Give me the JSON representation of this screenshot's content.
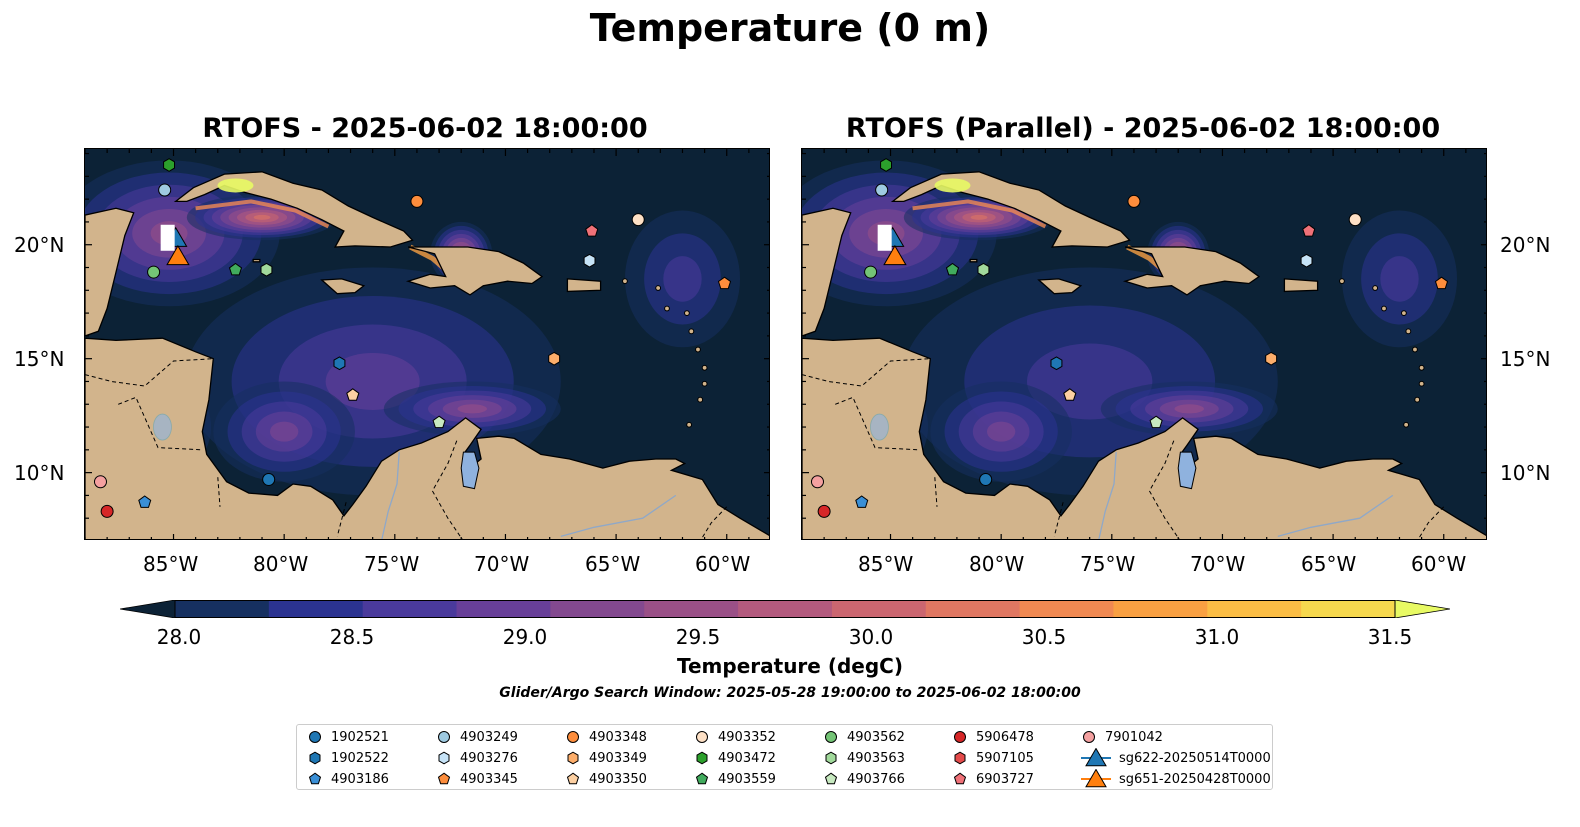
{
  "figure": {
    "suptitle": "Temperature (0 m)",
    "panels": [
      {
        "title": "RTOFS - 2025-06-02 18:00:00"
      },
      {
        "title": "RTOFS (Parallel) - 2025-06-02 18:00:00"
      }
    ],
    "lon_ticks": [
      "85°W",
      "80°W",
      "75°W",
      "70°W",
      "65°W",
      "60°W"
    ],
    "lat_ticks": [
      "20°N",
      "15°N",
      "10°N"
    ],
    "colorbar": {
      "label": "Temperature (degC)",
      "ticks": [
        "28.0",
        "28.5",
        "29.0",
        "29.5",
        "30.0",
        "30.5",
        "31.0",
        "31.5"
      ],
      "range": [
        27.75,
        31.75
      ],
      "colors": [
        "#0c2236",
        "#163060",
        "#2b3391",
        "#4a3a9c",
        "#683f99",
        "#83498f",
        "#9a5087",
        "#b35a7e",
        "#cb6670",
        "#e07762",
        "#f08952",
        "#f9a042",
        "#fbbd45",
        "#f6d84e",
        "#e8fa64"
      ]
    },
    "search_window": "Glider/Argo Search Window: 2025-05-28 19:00:00 to 2025-06-02 18:00:00",
    "legend": [
      {
        "label": "1902521",
        "color": "#1f77b4",
        "marker": "circle"
      },
      {
        "label": "1902522",
        "color": "#1f77b4",
        "marker": "hexagon"
      },
      {
        "label": "4903186",
        "color": "#3a8fd6",
        "marker": "pentagon"
      },
      {
        "label": "4903249",
        "color": "#9ecae1",
        "marker": "circle"
      },
      {
        "label": "4903276",
        "color": "#c6e3f7",
        "marker": "hexagon"
      },
      {
        "label": "4903345",
        "color": "#fd8d3c",
        "marker": "pentagon"
      },
      {
        "label": "4903348",
        "color": "#fd8d3c",
        "marker": "circle"
      },
      {
        "label": "4903349",
        "color": "#fdae6b",
        "marker": "hexagon"
      },
      {
        "label": "4903350",
        "color": "#fdd0a2",
        "marker": "pentagon"
      },
      {
        "label": "4903352",
        "color": "#fde0c5",
        "marker": "circle"
      },
      {
        "label": "4903472",
        "color": "#2ca02c",
        "marker": "hexagon"
      },
      {
        "label": "4903559",
        "color": "#41ab5d",
        "marker": "pentagon"
      },
      {
        "label": "4903562",
        "color": "#74c476",
        "marker": "circle"
      },
      {
        "label": "4903563",
        "color": "#a1d99b",
        "marker": "hexagon"
      },
      {
        "label": "4903766",
        "color": "#c7e9c0",
        "marker": "pentagon"
      },
      {
        "label": "5906478",
        "color": "#d62728",
        "marker": "circle"
      },
      {
        "label": "5907105",
        "color": "#e34a4a",
        "marker": "hexagon"
      },
      {
        "label": "6903727",
        "color": "#f07178",
        "marker": "pentagon"
      },
      {
        "label": "7901042",
        "color": "#f4a0a0",
        "marker": "circle"
      },
      {
        "label": "sg622-20250514T0000",
        "color": "#1f77b4",
        "marker": "triangle"
      },
      {
        "label": "sg651-20250428T0000",
        "color": "#ff7f0e",
        "marker": "triangle"
      }
    ],
    "floats": [
      {
        "id": "4903472",
        "lon": -85.2,
        "lat": 23.5
      },
      {
        "id": "4903249",
        "lon": -85.4,
        "lat": 22.4
      },
      {
        "id": "4903348",
        "lon": -74.0,
        "lat": 21.9
      },
      {
        "id": "4903352",
        "lon": -64.0,
        "lat": 21.1
      },
      {
        "id": "6903727",
        "lon": -66.1,
        "lat": 20.6
      },
      {
        "id": "4903276",
        "lon": -66.2,
        "lat": 19.3
      },
      {
        "id": "4903562",
        "lon": -85.9,
        "lat": 18.8
      },
      {
        "id": "4903559",
        "lon": -82.2,
        "lat": 18.9
      },
      {
        "id": "4903563",
        "lon": -80.8,
        "lat": 18.9
      },
      {
        "id": "4903345",
        "lon": -60.1,
        "lat": 18.3
      },
      {
        "id": "1902522",
        "lon": -77.5,
        "lat": 14.8
      },
      {
        "id": "4903349",
        "lon": -67.8,
        "lat": 15.0
      },
      {
        "id": "4903350",
        "lon": -76.9,
        "lat": 13.4
      },
      {
        "id": "4903766",
        "lon": -73.0,
        "lat": 12.2
      },
      {
        "id": "1902521",
        "lon": -80.7,
        "lat": 9.7
      },
      {
        "id": "7901042",
        "lon": -88.3,
        "lat": 9.6
      },
      {
        "id": "4903186",
        "lon": -86.3,
        "lat": 8.7
      },
      {
        "id": "5906478",
        "lon": -88.0,
        "lat": 8.3
      }
    ],
    "gliders": [
      {
        "id": "sg622-20250514T0000",
        "lon": -84.9,
        "lat": 20.2
      },
      {
        "id": "sg651-20250428T0000",
        "lon": -84.8,
        "lat": 19.4
      }
    ]
  }
}
